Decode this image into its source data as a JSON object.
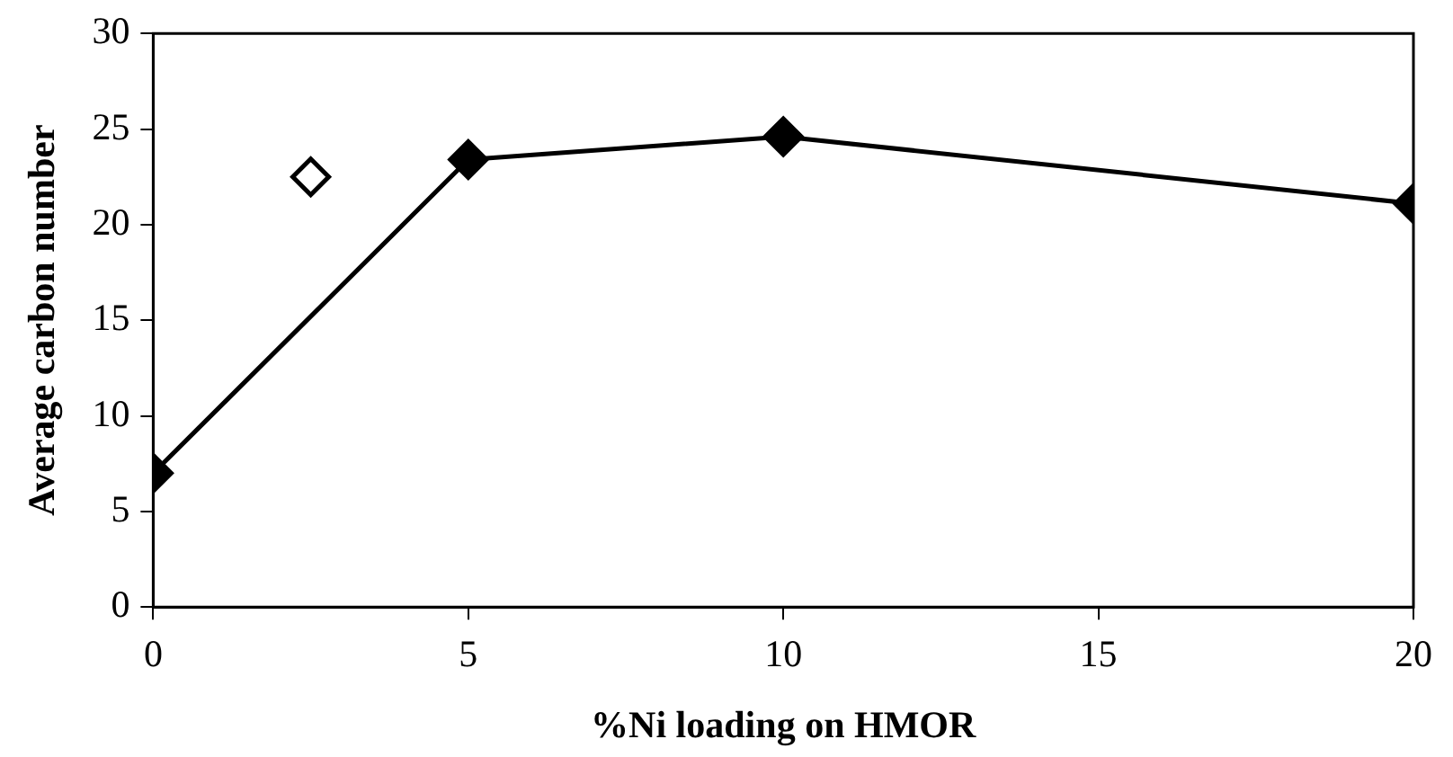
{
  "chart_data": {
    "type": "line",
    "xlabel": "%Ni loading on HMOR",
    "ylabel": "Average carbon number",
    "xlim": [
      0,
      20
    ],
    "xticks": [
      0,
      5,
      10,
      15,
      20
    ],
    "ylim": [
      0,
      30
    ],
    "yticks": [
      0,
      5,
      10,
      15,
      20,
      25,
      30
    ],
    "grid": false,
    "legend": false,
    "marker": "diamond",
    "line_style": "solid",
    "series": [
      {
        "type": "line",
        "color": "#000000",
        "x": [
          0,
          5,
          10,
          20
        ],
        "values": [
          7,
          23.4,
          24.6,
          21.1
        ]
      },
      {
        "type": "scatter",
        "color": "#000000",
        "x": [
          2.5
        ],
        "values": [
          22.5
        ]
      }
    ]
  }
}
